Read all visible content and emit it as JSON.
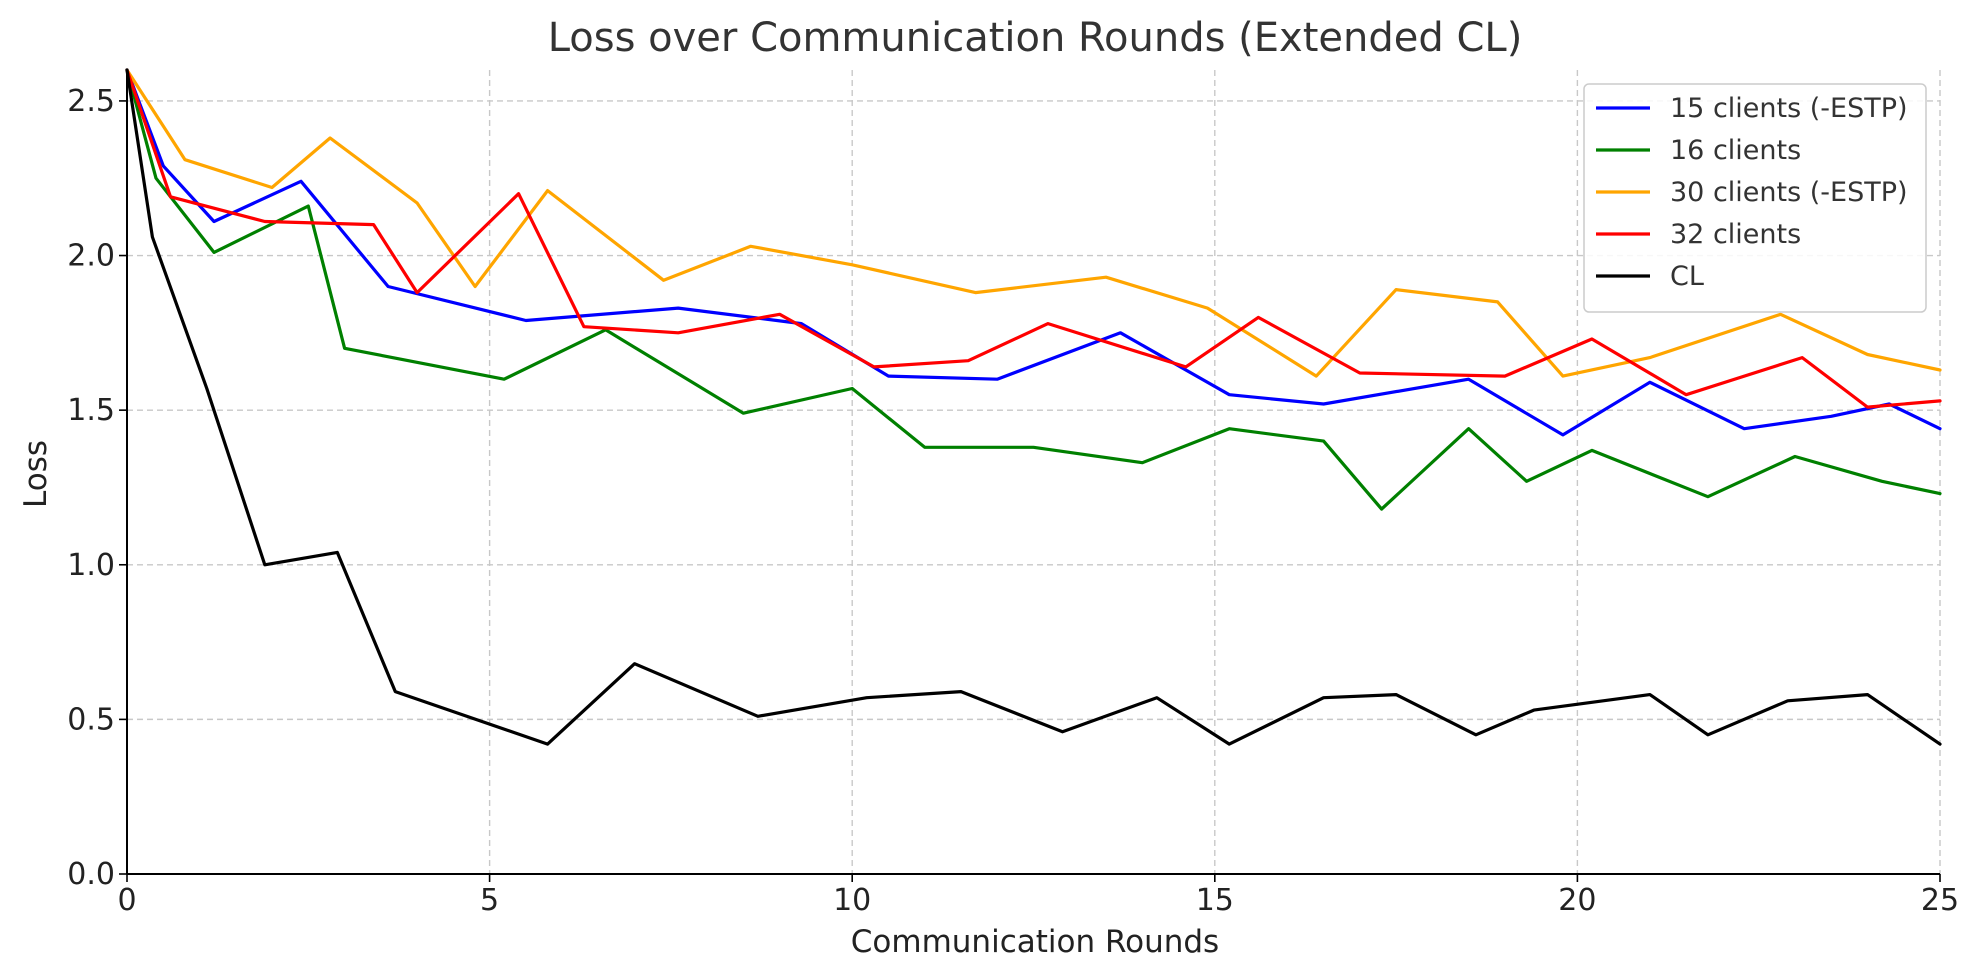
{
  "chart_data": {
    "type": "line",
    "title": "Loss over Communication Rounds (Extended CL)",
    "xlabel": "Communication Rounds",
    "ylabel": "Loss",
    "xlim": [
      0,
      25
    ],
    "ylim": [
      0,
      2.6
    ],
    "xticks": [
      0,
      5,
      10,
      15,
      20,
      25
    ],
    "yticks": [
      0.0,
      0.5,
      1.0,
      1.5,
      2.0,
      2.5
    ],
    "xtick_labels": [
      "0",
      "5",
      "10",
      "15",
      "20",
      "25"
    ],
    "ytick_labels": [
      "0.0",
      "0.5",
      "1.0",
      "1.5",
      "2.0",
      "2.5"
    ],
    "grid": true,
    "legend_position": "top-right",
    "series": [
      {
        "name": "15 clients (-ESTP)",
        "color": "#0000ff",
        "x": [
          0,
          0.5,
          1.2,
          2.4,
          3.6,
          5.5,
          7.6,
          9.3,
          10.5,
          12.0,
          13.7,
          15.2,
          16.5,
          18.5,
          19.8,
          21.0,
          22.3,
          23.5,
          24.3,
          25
        ],
        "y": [
          2.6,
          2.29,
          2.11,
          2.24,
          1.9,
          1.79,
          1.83,
          1.78,
          1.61,
          1.6,
          1.75,
          1.55,
          1.52,
          1.6,
          1.42,
          1.59,
          1.44,
          1.48,
          1.52,
          1.44
        ]
      },
      {
        "name": "16 clients",
        "color": "#008000",
        "x": [
          0,
          0.4,
          1.2,
          2.5,
          3.0,
          5.2,
          6.6,
          8.5,
          10.0,
          11.0,
          12.5,
          14.0,
          15.2,
          16.5,
          17.3,
          18.5,
          19.3,
          20.2,
          21.8,
          23.0,
          24.2,
          25
        ],
        "y": [
          2.6,
          2.25,
          2.01,
          2.16,
          1.7,
          1.6,
          1.76,
          1.49,
          1.57,
          1.38,
          1.38,
          1.33,
          1.44,
          1.4,
          1.18,
          1.44,
          1.27,
          1.37,
          1.22,
          1.35,
          1.27,
          1.23
        ]
      },
      {
        "name": "30 clients (-ESTP)",
        "color": "#ffa500",
        "x": [
          0,
          0.8,
          2.0,
          2.8,
          4.0,
          4.8,
          5.8,
          7.4,
          8.6,
          10.0,
          11.7,
          13.5,
          14.9,
          16.4,
          17.5,
          18.9,
          19.8,
          21.0,
          22.8,
          24.0,
          25
        ],
        "y": [
          2.6,
          2.31,
          2.22,
          2.38,
          2.17,
          1.9,
          2.21,
          1.92,
          2.03,
          1.97,
          1.88,
          1.93,
          1.83,
          1.61,
          1.89,
          1.85,
          1.61,
          1.67,
          1.81,
          1.68,
          1.63
        ]
      },
      {
        "name": "32 clients",
        "color": "#ff0000",
        "x": [
          0,
          0.6,
          1.9,
          3.4,
          4.0,
          5.4,
          6.3,
          7.6,
          9.0,
          10.3,
          11.6,
          12.7,
          14.6,
          15.6,
          17.0,
          19.0,
          20.2,
          21.5,
          23.1,
          24.0,
          25
        ],
        "y": [
          2.6,
          2.19,
          2.11,
          2.1,
          1.88,
          2.2,
          1.77,
          1.75,
          1.81,
          1.64,
          1.66,
          1.78,
          1.64,
          1.8,
          1.62,
          1.61,
          1.73,
          1.55,
          1.67,
          1.51,
          1.53
        ]
      },
      {
        "name": "CL",
        "color": "#000000",
        "x": [
          0,
          0.35,
          1.1,
          1.9,
          2.9,
          3.7,
          5.8,
          7.0,
          8.7,
          10.2,
          11.5,
          12.9,
          14.2,
          15.2,
          16.5,
          17.5,
          18.6,
          19.4,
          21.0,
          21.8,
          22.9,
          24.0,
          25
        ],
        "y": [
          2.6,
          2.06,
          1.57,
          1.0,
          1.04,
          0.59,
          0.42,
          0.68,
          0.51,
          0.57,
          0.59,
          0.46,
          0.57,
          0.42,
          0.57,
          0.58,
          0.45,
          0.53,
          0.58,
          0.45,
          0.56,
          0.58,
          0.42
        ]
      }
    ]
  }
}
